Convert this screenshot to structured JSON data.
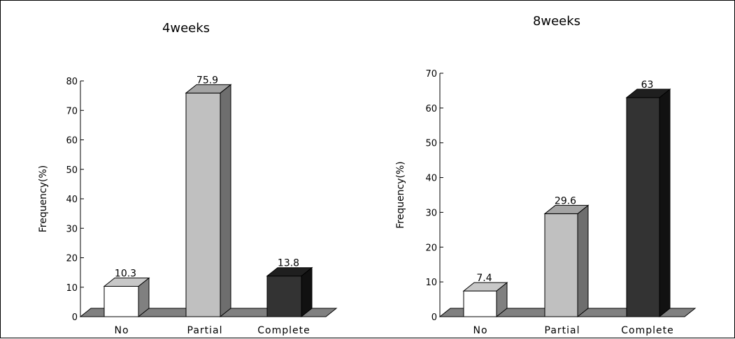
{
  "chart_data": [
    {
      "type": "bar",
      "title": "4weeks",
      "ylabel": "Frequency(%)",
      "xlabel": "",
      "categories": [
        "No",
        "Partial",
        "Complete"
      ],
      "values": [
        10.3,
        75.9,
        13.8
      ],
      "value_labels": [
        "10.3",
        "75.9",
        "13.8"
      ],
      "ylim": [
        0,
        80
      ],
      "yticks": [
        "0",
        "10",
        "20",
        "30",
        "40",
        "50",
        "60",
        "70",
        "80"
      ],
      "style": "3d",
      "grid": false,
      "colors": {
        "front": [
          "#ffffff",
          "#c0c0c0",
          "#333333"
        ],
        "top": [
          "#c8c8c8",
          "#a4a4a4",
          "#1f1f1f"
        ],
        "side": [
          "#808080",
          "#6e6e6e",
          "#111111"
        ],
        "floor": "#808080"
      }
    },
    {
      "type": "bar",
      "title": "8weeks",
      "ylabel": "Frequency(%)",
      "xlabel": "",
      "categories": [
        "No",
        "Partial",
        "Complete"
      ],
      "values": [
        7.4,
        29.6,
        63
      ],
      "value_labels": [
        "7.4",
        "29.6",
        "63"
      ],
      "ylim": [
        0,
        70
      ],
      "yticks": [
        "0",
        "10",
        "20",
        "30",
        "40",
        "50",
        "60",
        "70"
      ],
      "style": "3d",
      "grid": false,
      "colors": {
        "front": [
          "#ffffff",
          "#c0c0c0",
          "#333333"
        ],
        "top": [
          "#c8c8c8",
          "#a4a4a4",
          "#1f1f1f"
        ],
        "side": [
          "#808080",
          "#6e6e6e",
          "#111111"
        ],
        "floor": "#808080"
      }
    }
  ]
}
